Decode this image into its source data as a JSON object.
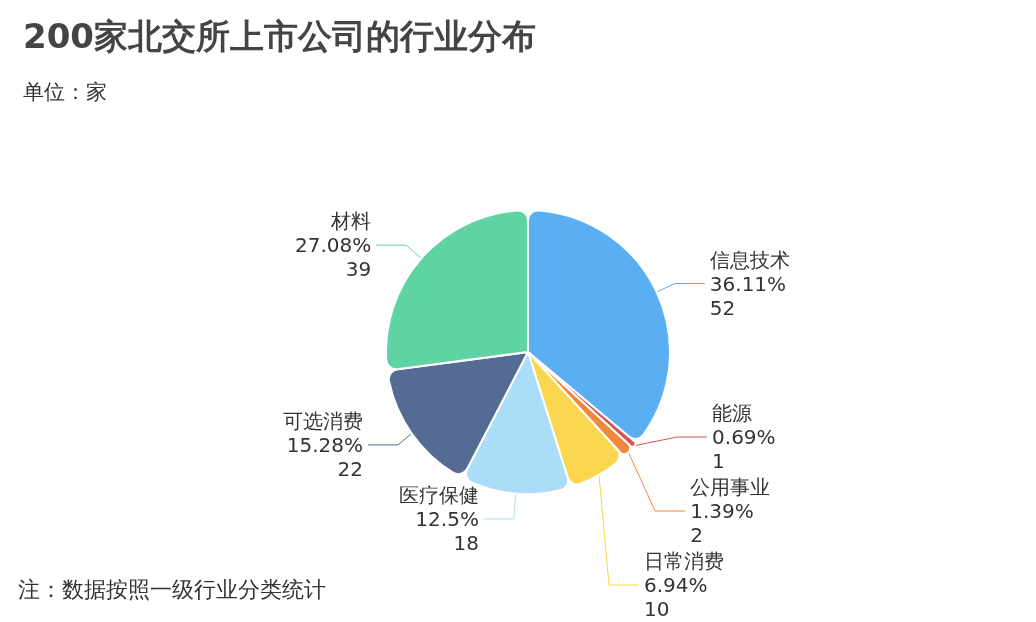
{
  "chart_data": {
    "type": "pie",
    "title": "200家北交所上市公司的行业分布",
    "subtitle": "单位：家",
    "categories": [
      "信息技术",
      "能源",
      "公用事业",
      "日常消费",
      "医疗保健",
      "可选消费",
      "材料"
    ],
    "values": [
      36.11,
      0.69,
      1.39,
      6.94,
      12.5,
      15.28,
      27.08
    ],
    "value_labels": [
      "36.11%\n52",
      "0.69%\n1",
      "1.39%\n2",
      "6.94%\n10",
      "12.5%\n18",
      "15.28%\n22",
      "27.08%\n39"
    ],
    "colors": [
      "#5aaef2",
      "#d9544e",
      "#f2893a",
      "#fbd64f",
      "#a9ddf8",
      "#566b93",
      "#5fd3a3"
    ],
    "annotations": [
      "注：数据按照一级行业分类统计"
    ],
    "legend": false
  }
}
